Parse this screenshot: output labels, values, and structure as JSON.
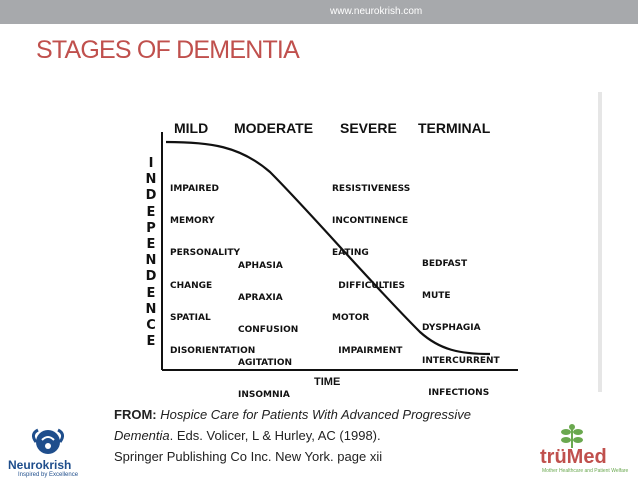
{
  "header": {
    "url": "www.neurokrish.com"
  },
  "slide": {
    "title": "STAGES OF DEMENTIA"
  },
  "figure": {
    "stages": [
      "MILD",
      "MODERATE",
      "SEVERE",
      "TERMINAL"
    ],
    "y_axis_letters": [
      "I",
      "N",
      "D",
      "E",
      "P",
      "E",
      "N",
      "D",
      "E",
      "N",
      "C",
      "E"
    ],
    "x_axis_label": "TIME",
    "mild_symptoms": [
      "IMPAIRED",
      "MEMORY",
      "PERSONALITY",
      "CHANGE",
      "SPATIAL",
      "DISORIENTATION"
    ],
    "moderate_symptoms": [
      "APHASIA",
      "APRAXIA",
      "CONFUSION",
      "AGITATION",
      "INSOMNIA"
    ],
    "severe_symptoms": [
      "RESISTIVENESS",
      "INCONTINENCE",
      "EATING",
      "  DIFFICULTIES",
      "MOTOR",
      "  IMPAIRMENT"
    ],
    "terminal_symptoms": [
      "BEDFAST",
      "MUTE",
      "DYSPHAGIA",
      "INTERCURRENT",
      "  INFECTIONS"
    ]
  },
  "caption": {
    "from_label": "FROM: ",
    "book_title": "Hospice Care for Patients With Advanced Progressive",
    "line2_title": "Dementia",
    "line2_rest": ". Eds. Volicer, L & Hurley, AC (1998).",
    "line3": "Springer Publishing Co Inc. New York. page xii"
  },
  "logos": {
    "left_name": "Neurokrish",
    "left_tagline": "Inspired by Excellence",
    "right_name": "trüMed",
    "right_sub": "Mother Healthcare and Patient Welfare"
  },
  "colors": {
    "title": "#c0504d",
    "topbar": "#a7a9ac",
    "left_logo": "#1f4e8c",
    "right_logo": "#c0504d"
  }
}
